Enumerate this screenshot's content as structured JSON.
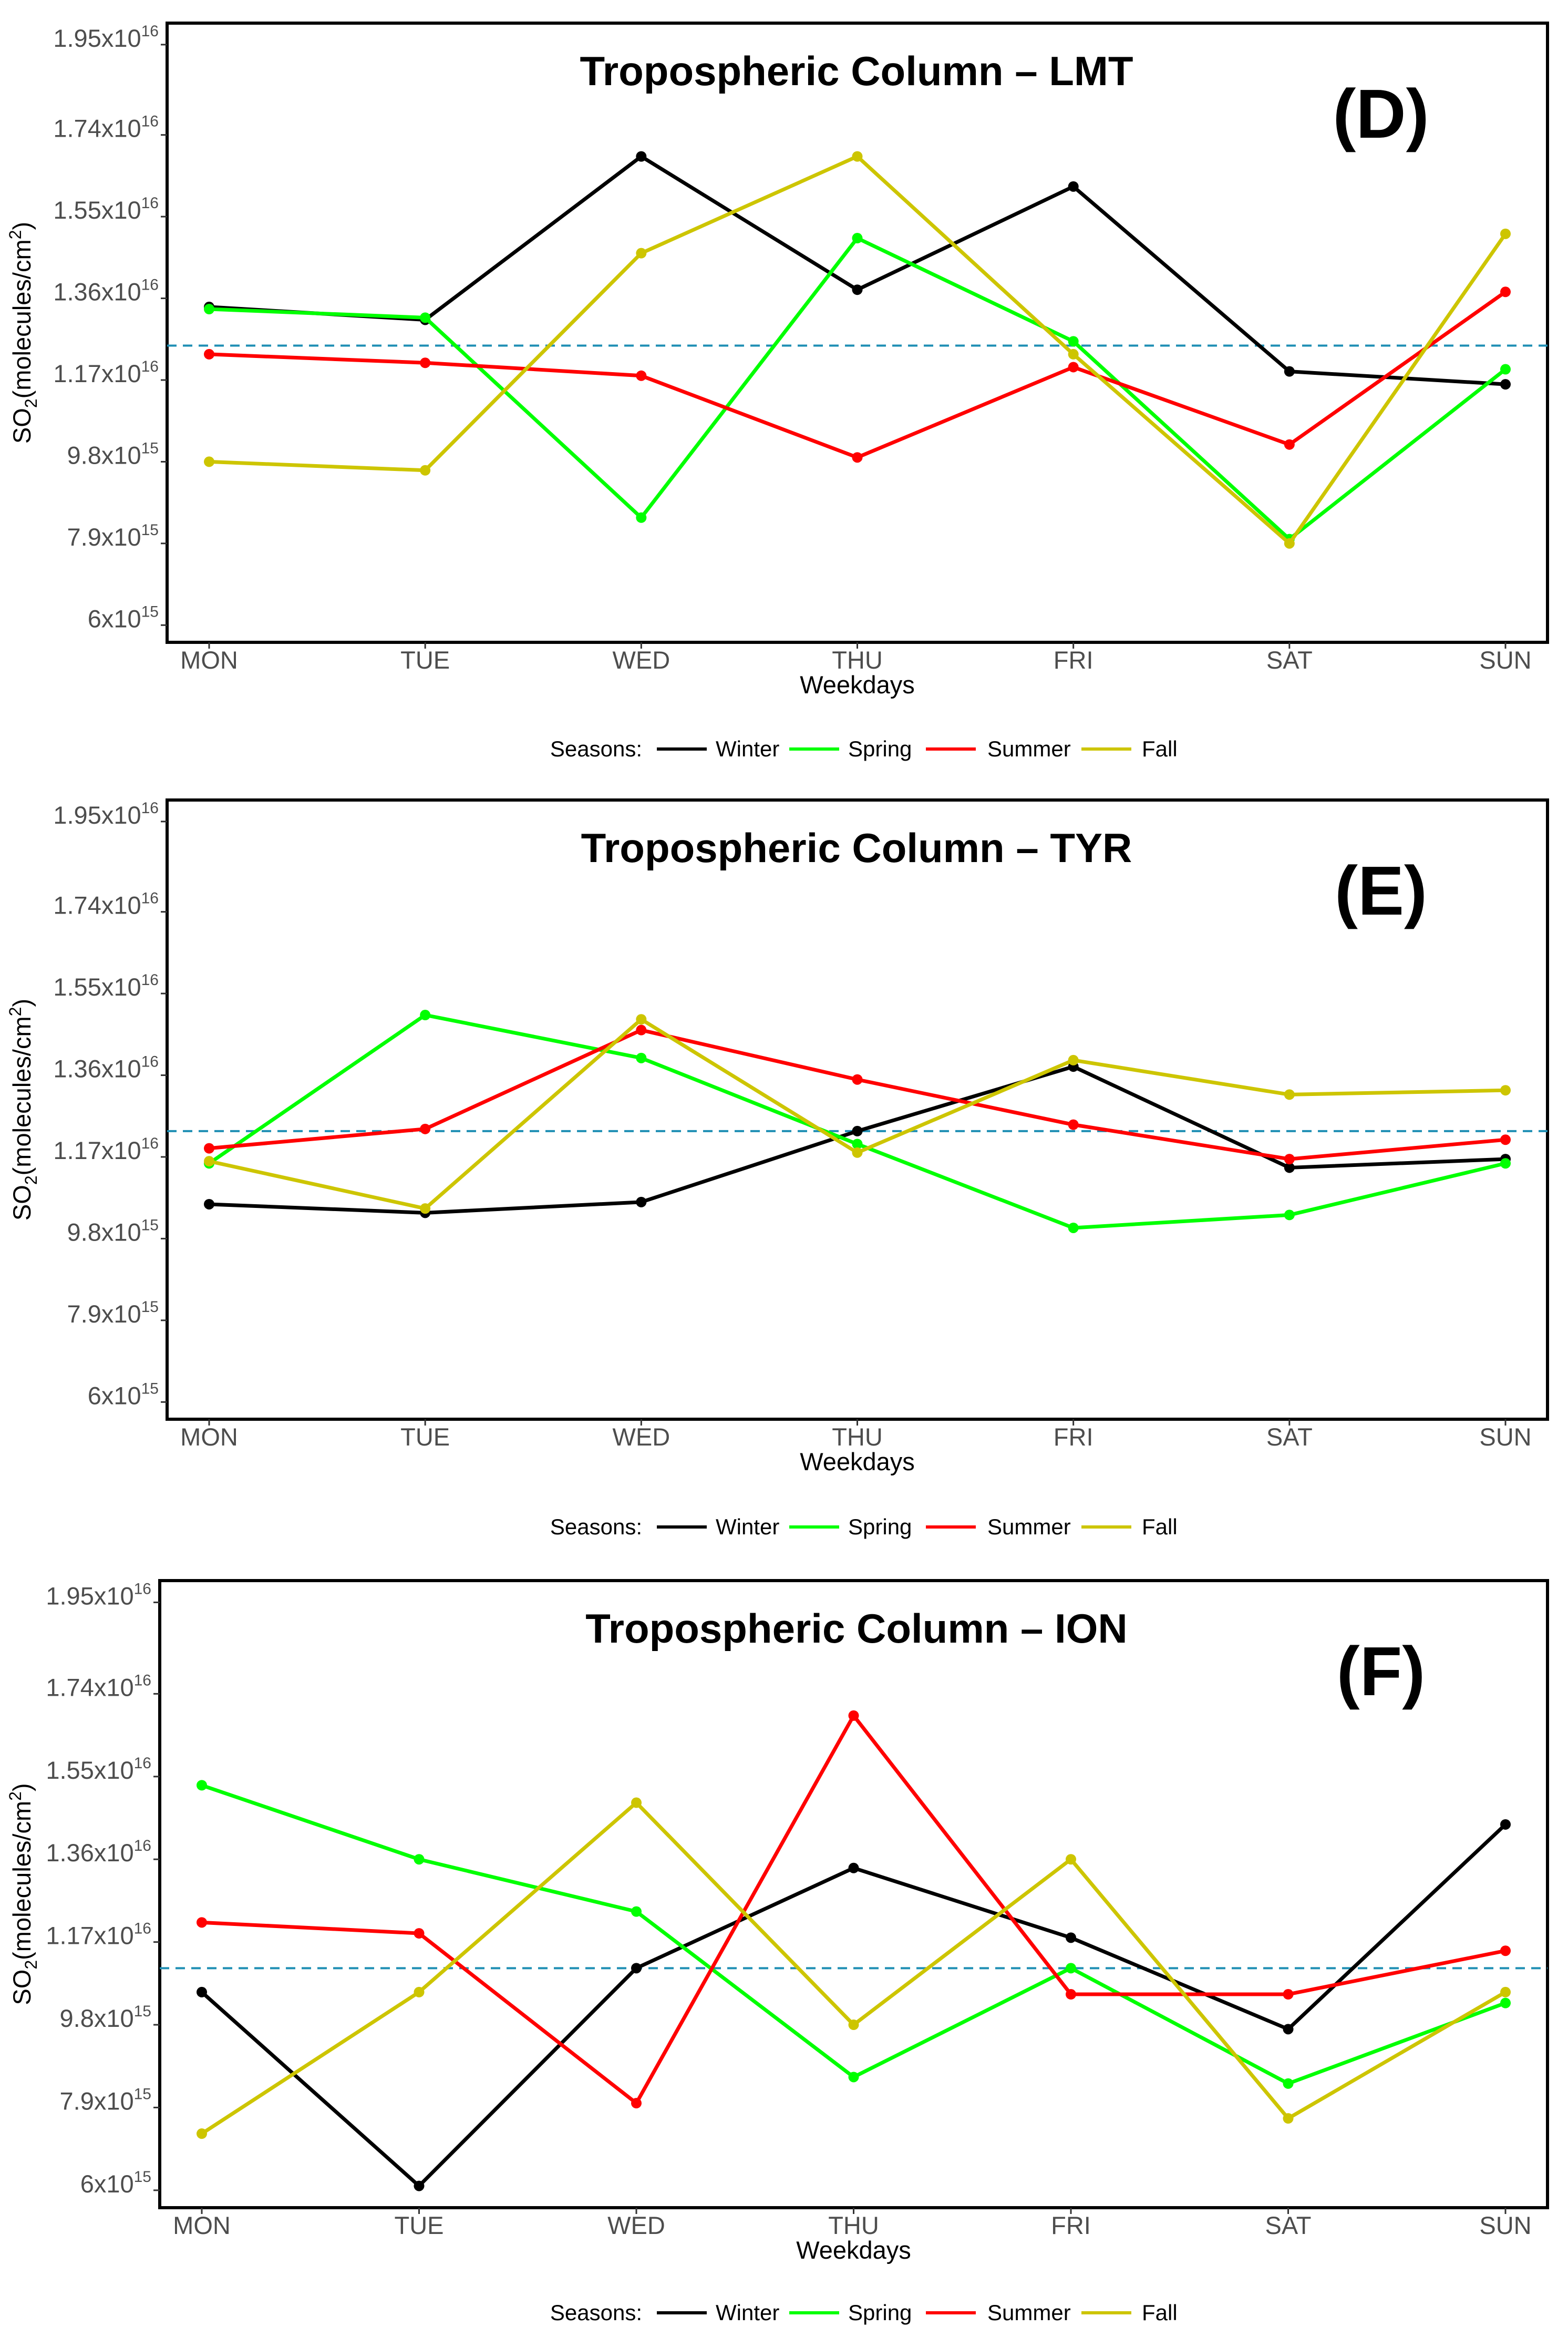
{
  "chart_data": [
    {
      "type": "line",
      "title": "Tropospheric Column – LMT",
      "panel_label": "(D)",
      "xlabel": "Weekdays",
      "ylabel": "SO2(molecules/cm2)",
      "categories": [
        "MON",
        "TUE",
        "WED",
        "THU",
        "FRI",
        "SAT",
        "SUN"
      ],
      "ylim": [
        5600000000000000.0,
        2e+16
      ],
      "yticks": [
        {
          "value": 6000000000000000.0,
          "mantissa": "6x10",
          "exp": "15"
        },
        {
          "value": 7900000000000000.0,
          "mantissa": "7.9x10",
          "exp": "15"
        },
        {
          "value": 9800000000000000.0,
          "mantissa": "9.8x10",
          "exp": "15"
        },
        {
          "value": 1.17e+16,
          "mantissa": "1.17x10",
          "exp": "16"
        },
        {
          "value": 1.36e+16,
          "mantissa": "1.36x10",
          "exp": "16"
        },
        {
          "value": 1.55e+16,
          "mantissa": "1.55x10",
          "exp": "16"
        },
        {
          "value": 1.74e+16,
          "mantissa": "1.74x10",
          "exp": "16"
        },
        {
          "value": 1.95e+16,
          "mantissa": "1.95x10",
          "exp": "16"
        }
      ],
      "reference_line": 1.25e+16,
      "series": [
        {
          "name": "Winter",
          "values": [
            1.34e+16,
            1.31e+16,
            1.69e+16,
            1.38e+16,
            1.62e+16,
            1.19e+16,
            1.16e+16
          ]
        },
        {
          "name": "Spring",
          "values": [
            1.335e+16,
            1.315e+16,
            8500000000000000.0,
            1.5e+16,
            1.26e+16,
            8000000000000000.0,
            1.195e+16
          ]
        },
        {
          "name": "Summer",
          "values": [
            1.23e+16,
            1.21e+16,
            1.18e+16,
            9900000000000000.0,
            1.2e+16,
            1.02e+16,
            1.375e+16
          ]
        },
        {
          "name": "Fall",
          "values": [
            9800000000000000.0,
            9600000000000000.0,
            1.465e+16,
            1.69e+16,
            1.23e+16,
            7900000000000000.0,
            1.51e+16
          ]
        }
      ],
      "legend": {
        "title": "Seasons:",
        "position": "bottom"
      }
    },
    {
      "type": "line",
      "title": "Tropospheric Column – TYR",
      "panel_label": "(E)",
      "xlabel": "Weekdays",
      "ylabel": "SO2(molecules/cm2)",
      "categories": [
        "MON",
        "TUE",
        "WED",
        "THU",
        "FRI",
        "SAT",
        "SUN"
      ],
      "ylim": [
        5600000000000000.0,
        2e+16
      ],
      "yticks": [
        {
          "value": 6000000000000000.0,
          "mantissa": "6x10",
          "exp": "15"
        },
        {
          "value": 7900000000000000.0,
          "mantissa": "7.9x10",
          "exp": "15"
        },
        {
          "value": 9800000000000000.0,
          "mantissa": "9.8x10",
          "exp": "15"
        },
        {
          "value": 1.17e+16,
          "mantissa": "1.17x10",
          "exp": "16"
        },
        {
          "value": 1.36e+16,
          "mantissa": "1.36x10",
          "exp": "16"
        },
        {
          "value": 1.55e+16,
          "mantissa": "1.55x10",
          "exp": "16"
        },
        {
          "value": 1.74e+16,
          "mantissa": "1.74x10",
          "exp": "16"
        },
        {
          "value": 1.95e+16,
          "mantissa": "1.95x10",
          "exp": "16"
        }
      ],
      "reference_line": 1.23e+16,
      "series": [
        {
          "name": "Winter",
          "values": [
            1.06e+16,
            1.04e+16,
            1.065e+16,
            1.23e+16,
            1.38e+16,
            1.145e+16,
            1.165e+16
          ]
        },
        {
          "name": "Spring",
          "values": [
            1.155e+16,
            1.5e+16,
            1.4e+16,
            1.2e+16,
            1.005e+16,
            1.035e+16,
            1.155e+16
          ]
        },
        {
          "name": "Summer",
          "values": [
            1.19e+16,
            1.235e+16,
            1.465e+16,
            1.35e+16,
            1.245e+16,
            1.165e+16,
            1.21e+16
          ]
        },
        {
          "name": "Fall",
          "values": [
            1.16e+16,
            1.05e+16,
            1.49e+16,
            1.18e+16,
            1.395e+16,
            1.315e+16,
            1.325e+16
          ]
        }
      ],
      "legend": {
        "title": "Seasons:",
        "position": "bottom"
      }
    },
    {
      "type": "line",
      "title": "Tropospheric Column – ION",
      "panel_label": "(F)",
      "xlabel": "Weekdays",
      "ylabel": "SO2(molecules/cm2)",
      "categories": [
        "MON",
        "TUE",
        "WED",
        "THU",
        "FRI",
        "SAT",
        "SUN"
      ],
      "ylim": [
        5600000000000000.0,
        2e+16
      ],
      "yticks": [
        {
          "value": 6000000000000000.0,
          "mantissa": "6x10",
          "exp": "15"
        },
        {
          "value": 7900000000000000.0,
          "mantissa": "7.9x10",
          "exp": "15"
        },
        {
          "value": 9800000000000000.0,
          "mantissa": "9.8x10",
          "exp": "15"
        },
        {
          "value": 1.17e+16,
          "mantissa": "1.17x10",
          "exp": "16"
        },
        {
          "value": 1.36e+16,
          "mantissa": "1.36x10",
          "exp": "16"
        },
        {
          "value": 1.55e+16,
          "mantissa": "1.55x10",
          "exp": "16"
        },
        {
          "value": 1.74e+16,
          "mantissa": "1.74x10",
          "exp": "16"
        },
        {
          "value": 1.95e+16,
          "mantissa": "1.95x10",
          "exp": "16"
        }
      ],
      "reference_line": 1.11e+16,
      "series": [
        {
          "name": "Winter",
          "values": [
            1.055e+16,
            6100000000000000.0,
            1.11e+16,
            1.34e+16,
            1.18e+16,
            9700000000000000.0,
            1.44e+16
          ]
        },
        {
          "name": "Spring",
          "values": [
            1.53e+16,
            1.36e+16,
            1.24e+16,
            8600000000000000.0,
            1.11e+16,
            8450000000000000.0,
            1.03e+16
          ]
        },
        {
          "name": "Summer",
          "values": [
            1.215e+16,
            1.19e+16,
            8000000000000000.0,
            1.69e+16,
            1.05e+16,
            1.05e+16,
            1.15e+16
          ]
        },
        {
          "name": "Fall",
          "values": [
            7300000000000000.0,
            1.055e+16,
            1.49e+16,
            9800000000000000.0,
            1.36e+16,
            7650000000000000.0,
            1.055e+16
          ]
        }
      ],
      "legend": {
        "title": "Seasons:",
        "position": "bottom"
      }
    }
  ],
  "colors": {
    "Winter": "#000000",
    "Spring": "#00ff00",
    "Summer": "#ff0000",
    "Fall": "#cdc500",
    "reference": "#1f8fb4",
    "axis_text": "#4d4d4d"
  }
}
